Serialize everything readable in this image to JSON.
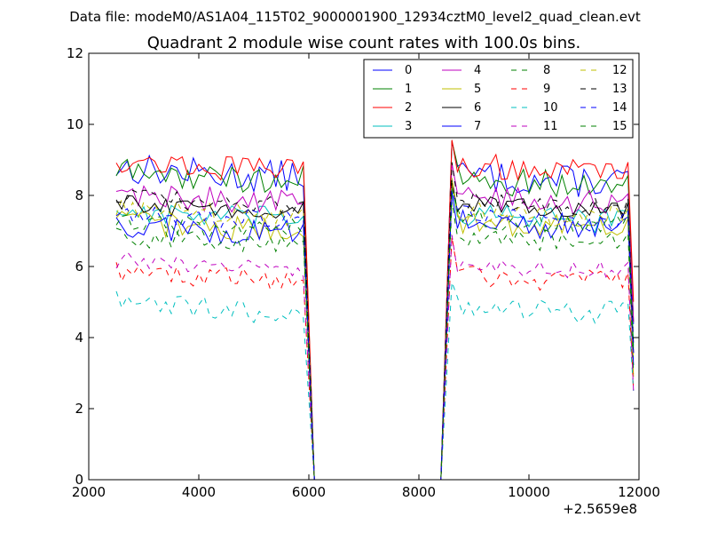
{
  "supertitle": "Data file: modeM0/AS1A04_115T02_9000001900_12934cztM0_level2_quad_clean.evt",
  "chart_data": {
    "type": "line",
    "title": "Quadrant 2 module wise count rates with 100.0s bins.",
    "xlabel": "",
    "ylabel": "",
    "xlim": [
      2000,
      12000
    ],
    "ylim": [
      0,
      12
    ],
    "x_offset_label": "+2.5659e8",
    "x_ticks": [
      2000,
      4000,
      6000,
      8000,
      10000,
      12000
    ],
    "x_tick_labels": [
      "2000",
      "4000",
      "6000",
      "8000",
      "10000",
      "12000"
    ],
    "y_ticks": [
      0,
      2,
      4,
      6,
      8,
      10,
      12
    ],
    "y_tick_labels": [
      "0",
      "2",
      "4",
      "6",
      "8",
      "10",
      "12"
    ],
    "grid": false,
    "legend_position": "top-right",
    "segments": [
      {
        "x_start": 2500,
        "x_end": 5950
      },
      {
        "x_start": 8600,
        "x_end": 11850
      }
    ],
    "series": [
      {
        "name": "0",
        "color": "#0000ff",
        "dash": "solid",
        "mean": 8.8,
        "seg2_mean": 8.6,
        "amp": 0.45
      },
      {
        "name": "1",
        "color": "#008000",
        "dash": "solid",
        "mean": 8.7,
        "seg2_mean": 8.5,
        "amp": 0.4
      },
      {
        "name": "2",
        "color": "#ff0000",
        "dash": "solid",
        "mean": 9.0,
        "seg2_mean": 8.9,
        "amp": 0.35
      },
      {
        "name": "3",
        "color": "#00bfbf",
        "dash": "solid",
        "mean": 7.6,
        "seg2_mean": 7.5,
        "amp": 0.35
      },
      {
        "name": "4",
        "color": "#bf00bf",
        "dash": "solid",
        "mean": 8.1,
        "seg2_mean": 8.0,
        "amp": 0.35
      },
      {
        "name": "5",
        "color": "#bfbf00",
        "dash": "solid",
        "mean": 7.3,
        "seg2_mean": 7.3,
        "amp": 0.35
      },
      {
        "name": "6",
        "color": "#000000",
        "dash": "solid",
        "mean": 7.8,
        "seg2_mean": 7.8,
        "amp": 0.25
      },
      {
        "name": "7",
        "color": "#0000ff",
        "dash": "solid",
        "mean": 7.2,
        "seg2_mean": 7.3,
        "amp": 0.4
      },
      {
        "name": "8",
        "color": "#008000",
        "dash": "dashed",
        "mean": 6.9,
        "seg2_mean": 6.9,
        "amp": 0.3
      },
      {
        "name": "9",
        "color": "#ff0000",
        "dash": "dashed",
        "mean": 5.9,
        "seg2_mean": 5.8,
        "amp": 0.3
      },
      {
        "name": "10",
        "color": "#00bfbf",
        "dash": "dashed",
        "mean": 5.0,
        "seg2_mean": 4.9,
        "amp": 0.35
      },
      {
        "name": "11",
        "color": "#bf00bf",
        "dash": "dashed",
        "mean": 6.2,
        "seg2_mean": 6.1,
        "amp": 0.25
      },
      {
        "name": "12",
        "color": "#bfbf00",
        "dash": "dashed",
        "mean": 7.7,
        "seg2_mean": 7.6,
        "amp": 0.3
      },
      {
        "name": "13",
        "color": "#000000",
        "dash": "dashed",
        "mean": 8.0,
        "seg2_mean": 7.9,
        "amp": 0.25
      },
      {
        "name": "14",
        "color": "#0000ff",
        "dash": "dashed",
        "mean": 7.6,
        "seg2_mean": 7.5,
        "amp": 0.3
      },
      {
        "name": "15",
        "color": "#008000",
        "dash": "dashed",
        "mean": 7.3,
        "seg2_mean": 7.4,
        "amp": 0.3
      }
    ]
  }
}
